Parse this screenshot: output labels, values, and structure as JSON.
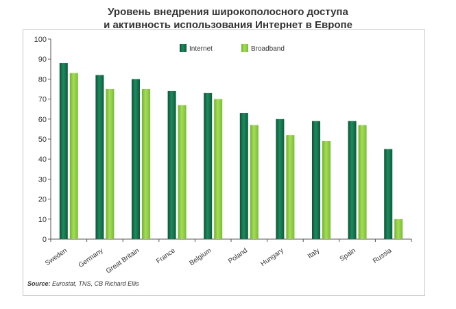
{
  "title": {
    "line1": "Уровень внедрения широкополосного доступа",
    "line2": "и активность использования Интернет в Европе"
  },
  "source": {
    "label": "Source:",
    "text": "Eurostat, TNS, CB Richard Ellis"
  },
  "colors": {
    "internet": "#0e6e4a",
    "broadband": "#8ecf3e",
    "axis": "#555555",
    "grid": "#e6e6e6"
  },
  "chart_data": {
    "type": "bar",
    "categories": [
      "Sweden",
      "Germany",
      "Great Britain",
      "France",
      "Belgium",
      "Poland",
      "Hungary",
      "Italy",
      "Spain",
      "Russia"
    ],
    "series": [
      {
        "name": "Internet",
        "values": [
          88,
          82,
          80,
          74,
          73,
          63,
          60,
          59,
          59,
          45
        ]
      },
      {
        "name": "Broadband",
        "values": [
          83,
          75,
          75,
          67,
          70,
          57,
          52,
          49,
          57,
          10
        ]
      }
    ],
    "ylim": [
      0,
      100
    ],
    "yticks": [
      0,
      10,
      20,
      30,
      40,
      50,
      60,
      70,
      80,
      90,
      100
    ],
    "legend_position": "top-center",
    "grid": false
  }
}
